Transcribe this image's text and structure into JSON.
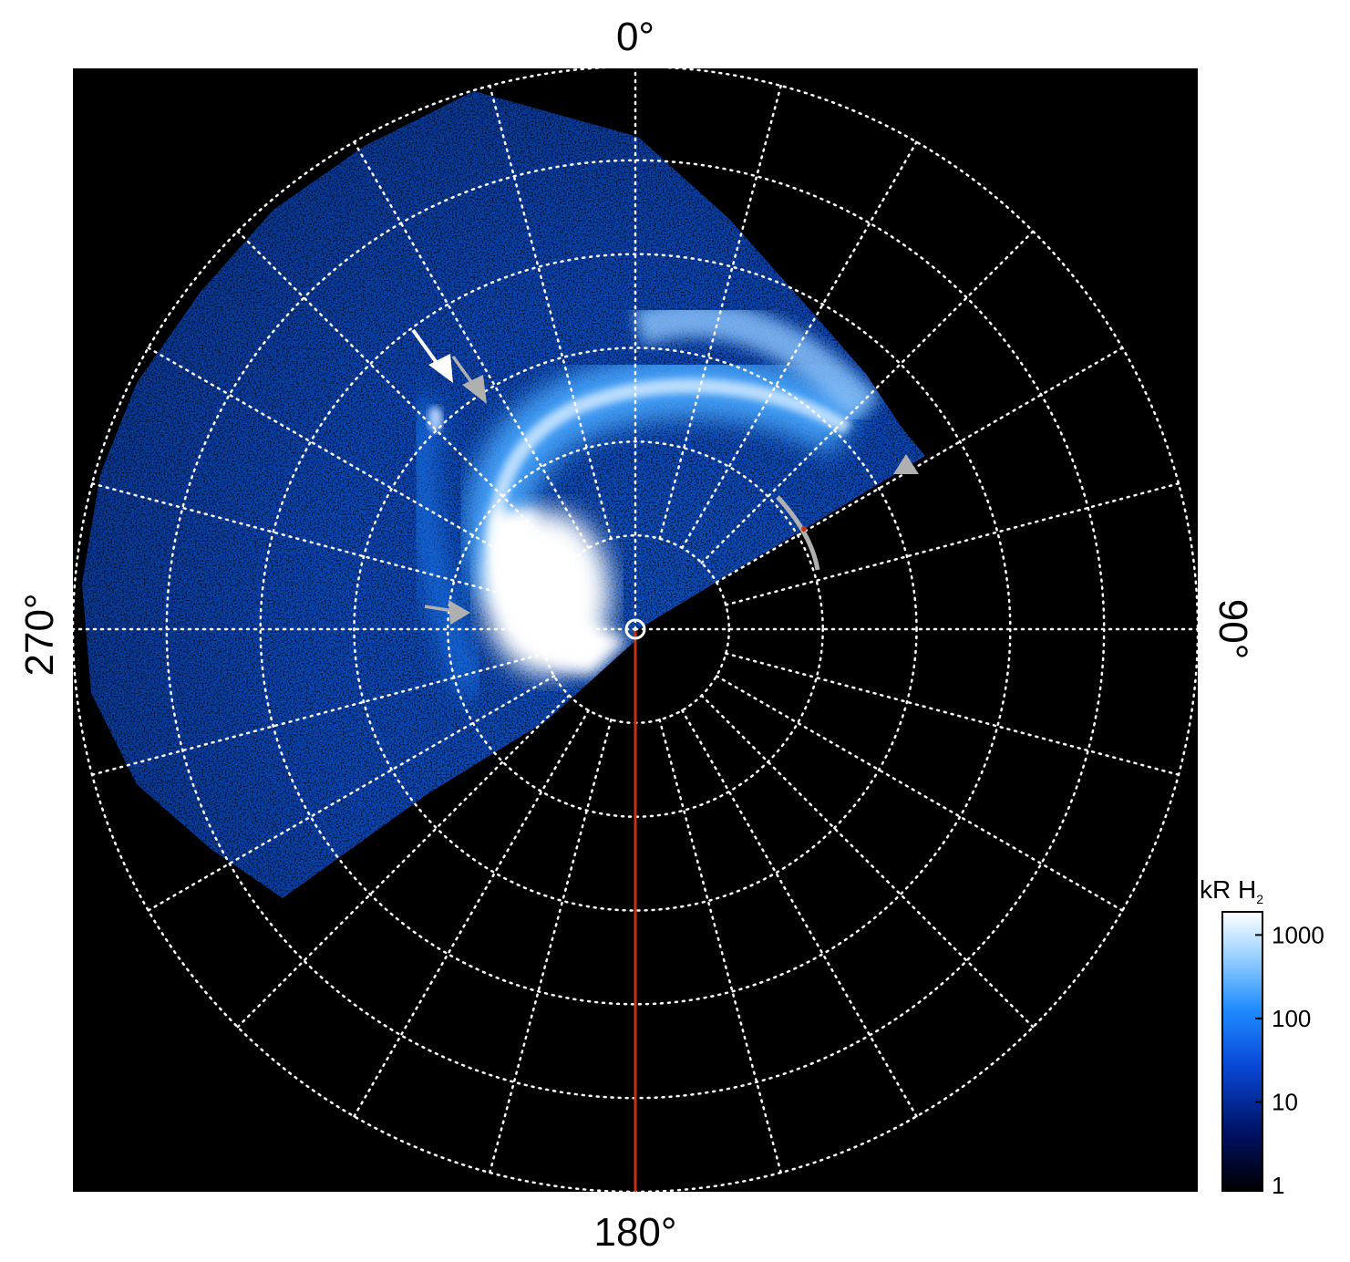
{
  "figure": {
    "azimuth_labels": {
      "top": "0°",
      "right": "90°",
      "bottom": "180°",
      "left": "270°"
    },
    "polar_grid": {
      "rings": 6,
      "spokes_every_deg": 15,
      "style": "dotted white"
    },
    "colorbar": {
      "title": "kR H",
      "title_subscript": "2",
      "scale": "log",
      "ticks": [
        "1",
        "10",
        "100",
        "1000"
      ],
      "colors": [
        "#000000",
        "#001060",
        "#0a48d8",
        "#1e8cff",
        "#9fd4ff",
        "#ffffff"
      ]
    },
    "colors": {
      "background": "#000000",
      "emission_low": "#0a3a9a",
      "emission_mid": "#1e78f0",
      "emission_high": "#ffffff",
      "meridian_line": "#c83210",
      "marker_gray": "#b0b0b0",
      "marker_white": "#ffffff"
    },
    "annotations": [
      {
        "kind": "arrow",
        "color": "white"
      },
      {
        "kind": "arrow",
        "color": "gray"
      },
      {
        "kind": "arrow",
        "color": "gray"
      },
      {
        "kind": "arrowhead",
        "color": "gray"
      },
      {
        "kind": "arc",
        "color": "gray"
      },
      {
        "kind": "pole-circle",
        "color": "white"
      }
    ]
  }
}
